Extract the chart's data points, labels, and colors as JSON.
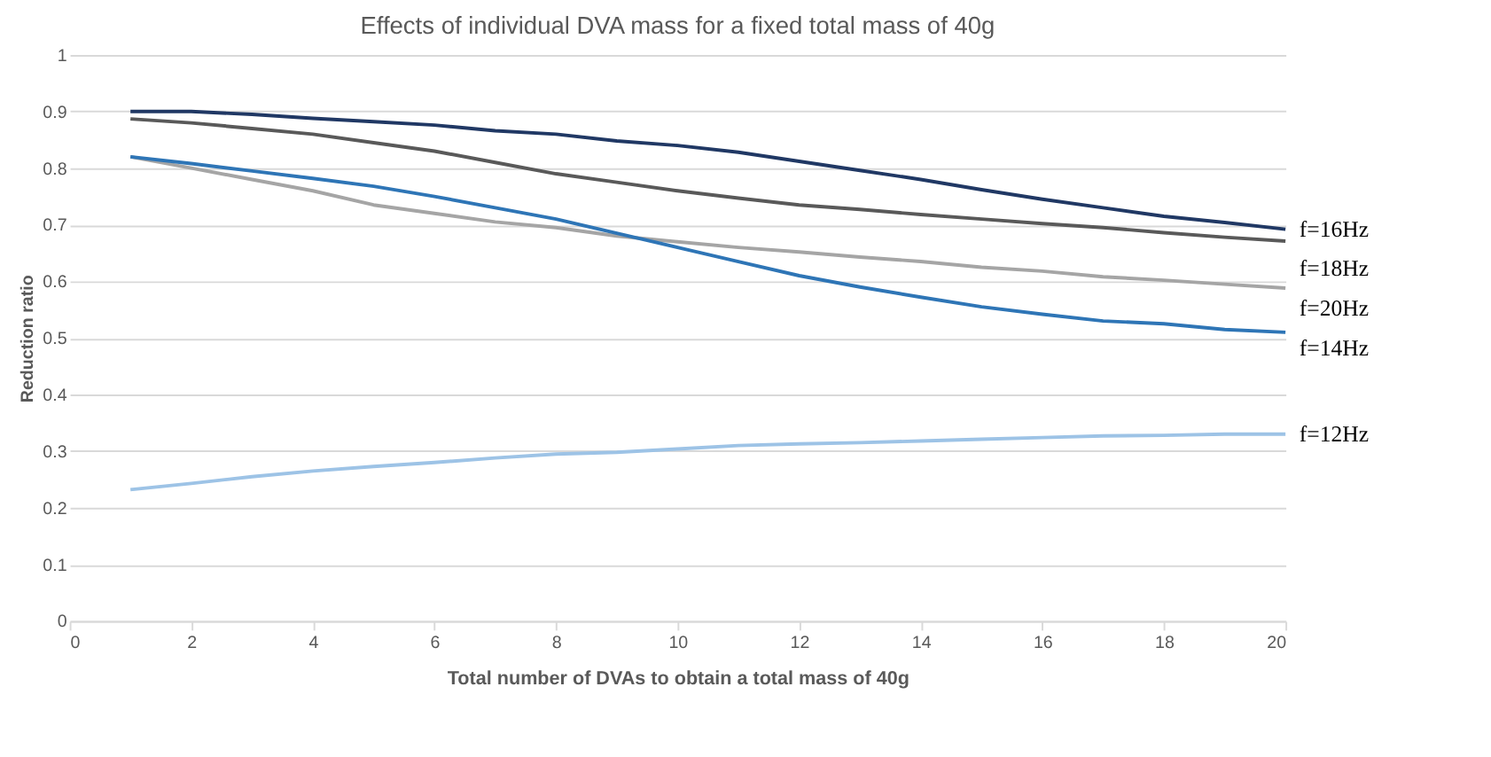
{
  "chart_data": {
    "type": "line",
    "title": "Effects of individual DVA mass for a fixed total mass of 40g",
    "xlabel": "Total number of DVAs to obtain a total mass of 40g",
    "ylabel": "Reduction ratio",
    "x": [
      1,
      2,
      3,
      4,
      5,
      6,
      7,
      8,
      9,
      10,
      11,
      12,
      13,
      14,
      15,
      16,
      17,
      18,
      19,
      20
    ],
    "series": [
      {
        "name": "f=16Hz",
        "color": "#203864",
        "values": [
          0.9,
          0.9,
          0.895,
          0.888,
          0.882,
          0.876,
          0.866,
          0.86,
          0.848,
          0.84,
          0.828,
          0.812,
          0.796,
          0.78,
          0.762,
          0.745,
          0.73,
          0.715,
          0.704,
          0.692
        ]
      },
      {
        "name": "f=18Hz",
        "color": "#595959",
        "values": [
          0.887,
          0.88,
          0.87,
          0.86,
          0.845,
          0.83,
          0.81,
          0.79,
          0.775,
          0.76,
          0.747,
          0.735,
          0.727,
          0.718,
          0.71,
          0.702,
          0.695,
          0.686,
          0.678,
          0.671
        ]
      },
      {
        "name": "f=20Hz",
        "color": "#a5a5a5",
        "values": [
          0.82,
          0.8,
          0.78,
          0.76,
          0.735,
          0.72,
          0.705,
          0.695,
          0.68,
          0.67,
          0.66,
          0.652,
          0.643,
          0.635,
          0.625,
          0.618,
          0.608,
          0.602,
          0.595,
          0.588
        ]
      },
      {
        "name": "f=14Hz",
        "color": "#2e75b6",
        "values": [
          0.82,
          0.808,
          0.795,
          0.782,
          0.768,
          0.75,
          0.73,
          0.71,
          0.685,
          0.66,
          0.635,
          0.61,
          0.59,
          0.572,
          0.555,
          0.542,
          0.53,
          0.525,
          0.515,
          0.51
        ]
      },
      {
        "name": "f=12Hz",
        "color": "#9dc3e6",
        "values": [
          0.232,
          0.243,
          0.255,
          0.265,
          0.273,
          0.28,
          0.288,
          0.295,
          0.298,
          0.304,
          0.31,
          0.313,
          0.315,
          0.318,
          0.321,
          0.324,
          0.327,
          0.328,
          0.33,
          0.33
        ]
      }
    ],
    "xlim": [
      0,
      20
    ],
    "xticks": [
      0,
      2,
      4,
      6,
      8,
      10,
      12,
      14,
      16,
      18,
      20
    ],
    "ylim": [
      0,
      1
    ],
    "yticks": [
      0,
      0.1,
      0.2,
      0.3,
      0.4,
      0.5,
      0.6,
      0.7,
      0.8,
      0.9,
      1
    ],
    "grid": "y",
    "legend": false,
    "marker": "none",
    "line_style": "solid"
  }
}
